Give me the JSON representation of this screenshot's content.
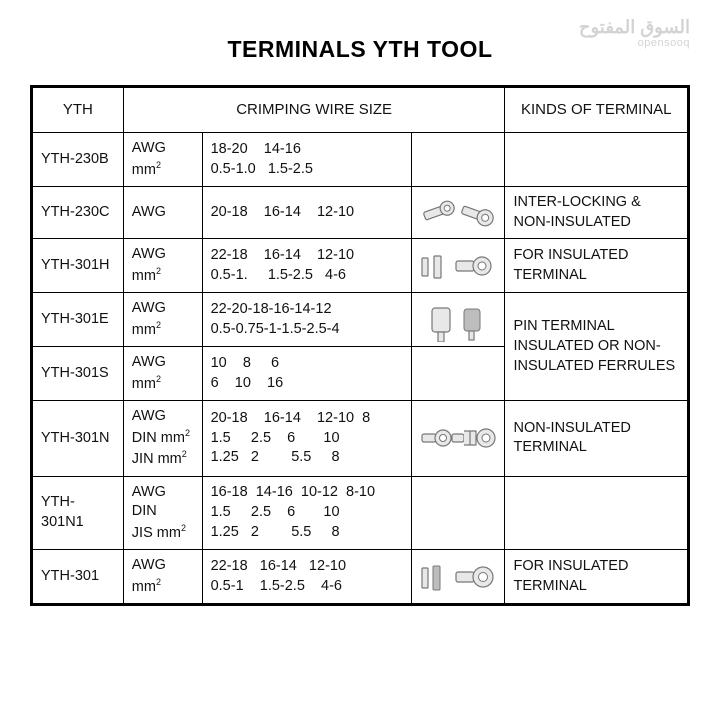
{
  "watermark": {
    "line1": "السوق المفتوح",
    "line2": "opensooq"
  },
  "title": "TERMINALS YTH TOOL",
  "headers": {
    "yth": "YTH",
    "crimp": "CRIMPING WIRE SIZE",
    "kind": "KINDS OF TERMINAL"
  },
  "rows": [
    {
      "model": "YTH-230B",
      "unit_html": "AWG<br>mm<span class='sup'>2</span>",
      "size_html": "18-20&nbsp;&nbsp;&nbsp;&nbsp;14-16<br>0.5-1.0&nbsp;&nbsp;&nbsp;1.5-2.5",
      "img": null,
      "kind": ""
    },
    {
      "model": "YTH-230C",
      "unit_html": "AWG",
      "size_html": "20-18&nbsp;&nbsp;&nbsp;&nbsp;16-14&nbsp;&nbsp;&nbsp;&nbsp;12-10",
      "img": "ring-pair",
      "kind": "INTER-LOCKING & NON-INSULATED"
    },
    {
      "model": "YTH-301H",
      "unit_html": "AWG<br>mm<span class='sup'>2</span>",
      "size_html": "22-18&nbsp;&nbsp;&nbsp;&nbsp;16-14&nbsp;&nbsp;&nbsp;&nbsp;12-10<br>0.5-1.&nbsp;&nbsp;&nbsp;&nbsp;&nbsp;1.5-2.5&nbsp;&nbsp;&nbsp;4-6",
      "img": "ferrule-ring",
      "kind": "FOR INSULATED TERMINAL"
    },
    {
      "model": "YTH-301E",
      "unit_html": "AWG<br>mm<span class='sup'>2</span>",
      "size_html": "22-20-18-16-14-12<br>0.5-0.75-1-1.5-2.5-4",
      "img": "pin-pair",
      "kind_rowspan": 2,
      "kind": "PIN TERMINAL INSULATED OR NON-INSULATED FERRULES"
    },
    {
      "model": "YTH-301S",
      "unit_html": "AWG<br>mm<span class='sup'>2</span>",
      "size_html": "10&nbsp;&nbsp;&nbsp;&nbsp;8&nbsp;&nbsp;&nbsp;&nbsp;&nbsp;6<br>6&nbsp;&nbsp;&nbsp;&nbsp;10&nbsp;&nbsp;&nbsp;&nbsp;16",
      "img": null,
      "kind_skip": true
    },
    {
      "model": "YTH-301N",
      "unit_html": "AWG<br>DIN mm<span class='sup'>2</span><br>JIN mm<span class='sup'>2</span>",
      "size_html": "20-18&nbsp;&nbsp;&nbsp;&nbsp;16-14&nbsp;&nbsp;&nbsp;&nbsp;12-10&nbsp;&nbsp;8<br>1.5&nbsp;&nbsp;&nbsp;&nbsp;&nbsp;2.5&nbsp;&nbsp;&nbsp;&nbsp;6&nbsp;&nbsp;&nbsp;&nbsp;&nbsp;&nbsp;&nbsp;10<br>1.25&nbsp;&nbsp;&nbsp;2&nbsp;&nbsp;&nbsp;&nbsp;&nbsp;&nbsp;&nbsp;&nbsp;5.5&nbsp;&nbsp;&nbsp;&nbsp;&nbsp;8",
      "img": "ring-spade",
      "kind": "NON-INSULATED TERMINAL"
    },
    {
      "model": "YTH-301N1",
      "unit_html": "AWG<br>DIN<br>JIS mm<span class='sup'>2</span>",
      "size_html": "16-18&nbsp;&nbsp;14-16&nbsp;&nbsp;10-12&nbsp;&nbsp;8-10<br>1.5&nbsp;&nbsp;&nbsp;&nbsp;&nbsp;2.5&nbsp;&nbsp;&nbsp;&nbsp;6&nbsp;&nbsp;&nbsp;&nbsp;&nbsp;&nbsp;&nbsp;10<br>1.25&nbsp;&nbsp;&nbsp;2&nbsp;&nbsp;&nbsp;&nbsp;&nbsp;&nbsp;&nbsp;&nbsp;5.5&nbsp;&nbsp;&nbsp;&nbsp;&nbsp;8",
      "img": null,
      "kind": ""
    },
    {
      "model": "YTH-301",
      "unit_html": "AWG<br>mm<span class='sup'>2</span>",
      "size_html": "22-18&nbsp;&nbsp;&nbsp;16-14&nbsp;&nbsp;&nbsp;12-10<br>0.5-1&nbsp;&nbsp;&nbsp;&nbsp;1.5-2.5&nbsp;&nbsp;&nbsp;&nbsp;4-6",
      "img": "ferrule-ring2",
      "kind": "FOR INSULATED TERMINAL"
    }
  ],
  "colors": {
    "border": "#000000",
    "text": "#111111",
    "bg": "#ffffff",
    "wm": "#555555"
  }
}
